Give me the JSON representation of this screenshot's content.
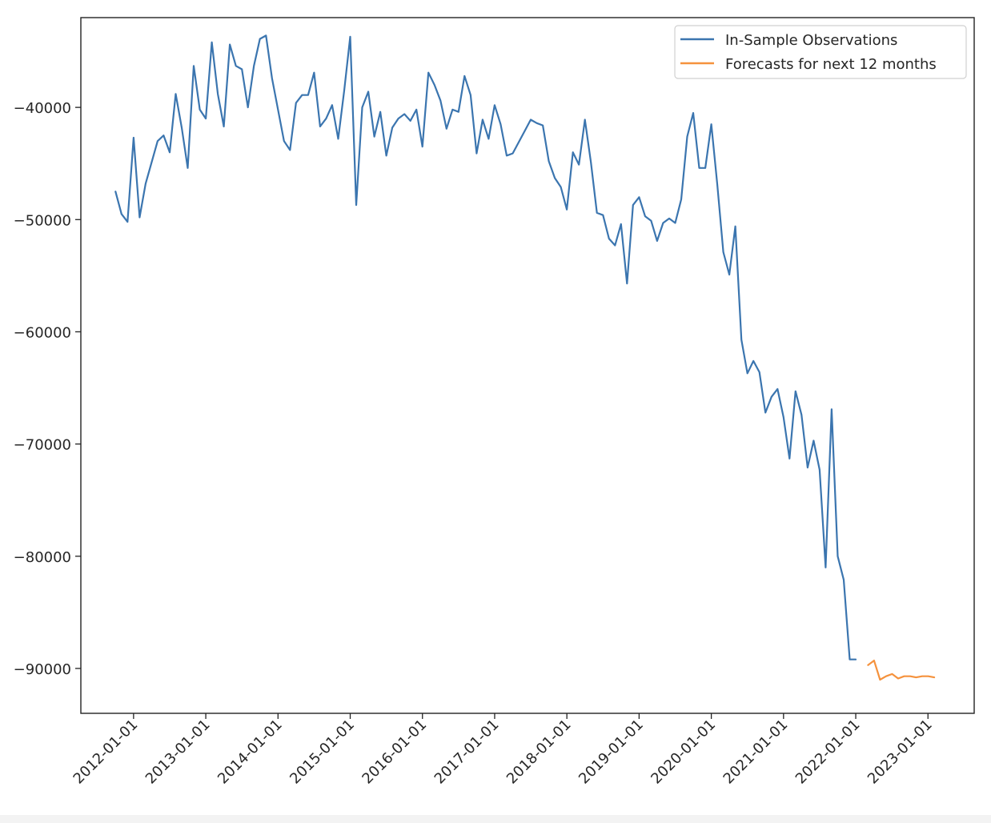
{
  "chart_data": {
    "type": "line",
    "title": "",
    "xlabel": "",
    "ylabel": "",
    "ylim": [
      -94000,
      -32000
    ],
    "xlim": [
      2011.27,
      2023.64
    ],
    "grid": false,
    "legend_position": "top-right",
    "yticks": [
      {
        "value": -40000,
        "label": "−40000"
      },
      {
        "value": -50000,
        "label": "−50000"
      },
      {
        "value": -60000,
        "label": "−60000"
      },
      {
        "value": -70000,
        "label": "−70000"
      },
      {
        "value": -80000,
        "label": "−80000"
      },
      {
        "value": -90000,
        "label": "−90000"
      }
    ],
    "xticks": [
      {
        "value": 2012,
        "label": "2012-01-01"
      },
      {
        "value": 2013,
        "label": "2013-01-01"
      },
      {
        "value": 2014,
        "label": "2014-01-01"
      },
      {
        "value": 2015,
        "label": "2015-01-01"
      },
      {
        "value": 2016,
        "label": "2016-01-01"
      },
      {
        "value": 2017,
        "label": "2017-01-01"
      },
      {
        "value": 2018,
        "label": "2018-01-01"
      },
      {
        "value": 2019,
        "label": "2019-01-01"
      },
      {
        "value": 2020,
        "label": "2020-01-01"
      },
      {
        "value": 2021,
        "label": "2021-01-01"
      },
      {
        "value": 2022,
        "label": "2022-01-01"
      },
      {
        "value": 2023,
        "label": "2023-01-01"
      }
    ],
    "series": [
      {
        "name": "In-Sample Observations",
        "color": "#3b75af",
        "start_year": 2011.75,
        "step": 0.08333,
        "values": [
          -47500,
          -49500,
          -50200,
          -42700,
          -49800,
          -46800,
          -44900,
          -43000,
          -42500,
          -44000,
          -38800,
          -41800,
          -45400,
          -36300,
          -40200,
          -41000,
          -34200,
          -38800,
          -41700,
          -34400,
          -36300,
          -36600,
          -40000,
          -36300,
          -33900,
          -33600,
          -37400,
          -40200,
          -43000,
          -43800,
          -39600,
          -38900,
          -38900,
          -36900,
          -41700,
          -41000,
          -39800,
          -42800,
          -38500,
          -33700,
          -48700,
          -40000,
          -38600,
          -42600,
          -40400,
          -44300,
          -41800,
          -41000,
          -40600,
          -41200,
          -40200,
          -43500,
          -36900,
          -38000,
          -39400,
          -41900,
          -40200,
          -40400,
          -37200,
          -38900,
          -44100,
          -41100,
          -42800,
          -39800,
          -41500,
          -44300,
          -44100,
          -43100,
          -42100,
          -41100,
          -41400,
          -41600,
          -44800,
          -46300,
          -47100,
          -49100,
          -44000,
          -45100,
          -41100,
          -44900,
          -49400,
          -49600,
          -51700,
          -52300,
          -50400,
          -55700,
          -48700,
          -48000,
          -49700,
          -50100,
          -51900,
          -50300,
          -49900,
          -50300,
          -48200,
          -42600,
          -40500,
          -45400,
          -45400,
          -41500,
          -46900,
          -52900,
          -54900,
          -50600,
          -60700,
          -63700,
          -62600,
          -63600,
          -67200,
          -65800,
          -65100,
          -67600,
          -71300,
          -65300,
          -67400,
          -72100,
          -69700,
          -72300,
          -81000,
          -66900,
          -80000,
          -82100,
          -89200,
          -89200
        ]
      },
      {
        "name": "Forecasts for next 12 months",
        "color": "#f5923d",
        "start_year": 2022.17,
        "step": 0.08333,
        "values": [
          -89700,
          -89300,
          -91000,
          -90700,
          -90500,
          -90900,
          -90700,
          -90700,
          -90800,
          -90700,
          -90700,
          -90800
        ]
      }
    ]
  }
}
